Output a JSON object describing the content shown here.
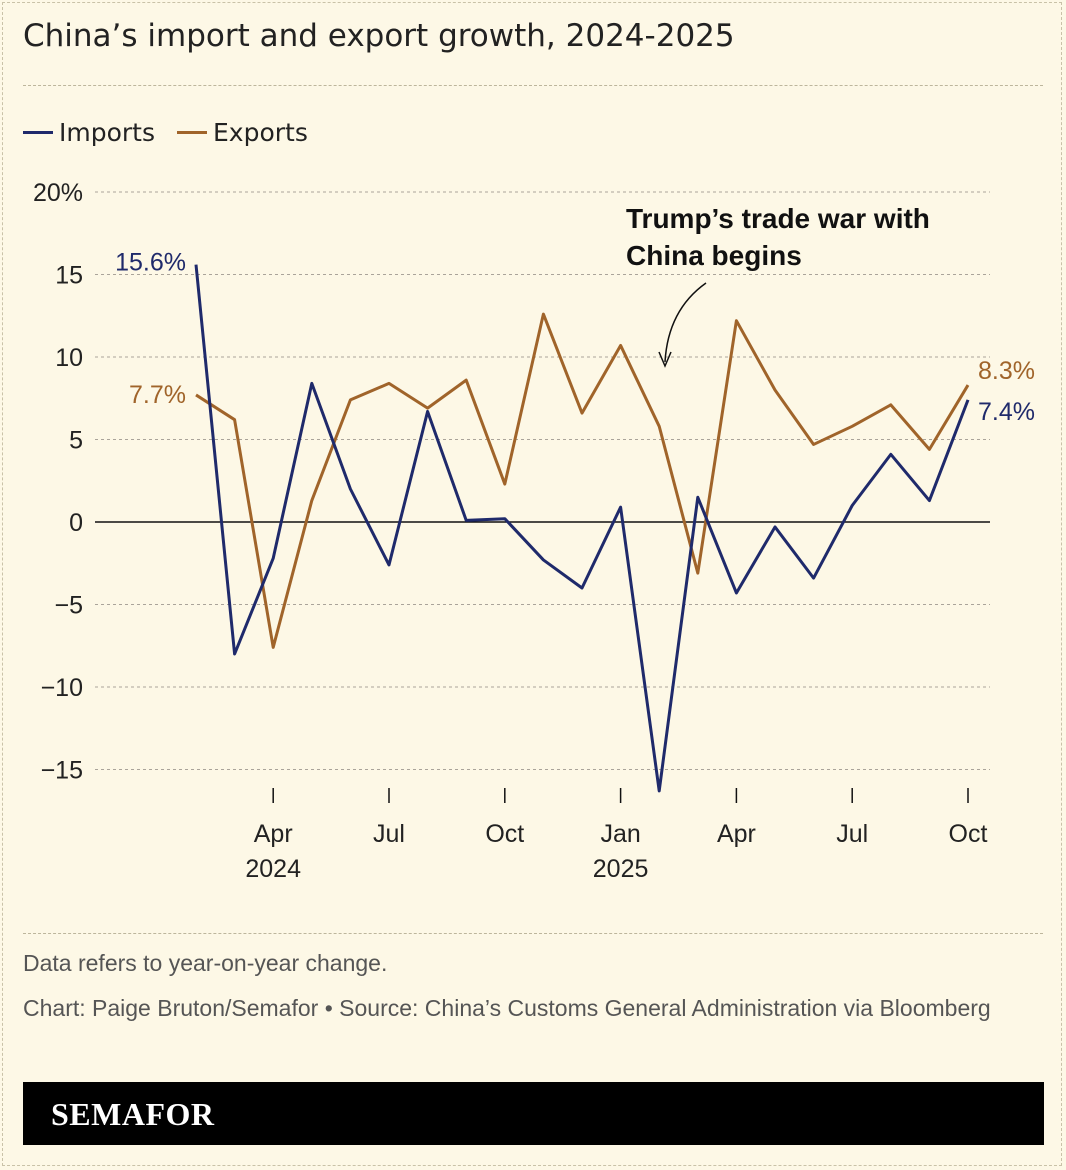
{
  "title": "China’s import and export growth, 2024-2025",
  "legend": [
    "Imports",
    "Exports"
  ],
  "notes": {
    "line1": "Data refers to year-on-year change.",
    "line2": "Chart: Paige Bruton/Semafor • Source: China’s Customs General Administration via Bloomberg"
  },
  "brand": "SEMAFOR",
  "chart_data": {
    "type": "line",
    "title": "China’s import and export growth, 2024-2025",
    "x": [
      "2024-02",
      "2024-03",
      "2024-04",
      "2024-05",
      "2024-06",
      "2024-07",
      "2024-08",
      "2024-09",
      "2024-10",
      "2024-11",
      "2024-12",
      "2025-01",
      "2025-02",
      "2025-03",
      "2025-04",
      "2025-05",
      "2025-06",
      "2025-07",
      "2025-08",
      "2025-09",
      "2025-10"
    ],
    "x_ticks": [
      {
        "x": "2024-04",
        "label": "Apr",
        "sub": "2024"
      },
      {
        "x": "2024-07",
        "label": "Jul",
        "sub": ""
      },
      {
        "x": "2024-10",
        "label": "Oct",
        "sub": ""
      },
      {
        "x": "2025-01",
        "label": "Jan",
        "sub": "2025"
      },
      {
        "x": "2025-04",
        "label": "Apr",
        "sub": ""
      },
      {
        "x": "2025-07",
        "label": "Jul",
        "sub": ""
      },
      {
        "x": "2025-10",
        "label": "Oct",
        "sub": ""
      }
    ],
    "y_ticks": [
      {
        "v": 20,
        "label": "20%"
      },
      {
        "v": 15,
        "label": "15"
      },
      {
        "v": 10,
        "label": "10"
      },
      {
        "v": 5,
        "label": "5"
      },
      {
        "v": 0,
        "label": "0"
      },
      {
        "v": -5,
        "label": "−5"
      },
      {
        "v": -10,
        "label": "−10"
      },
      {
        "v": -15,
        "label": "−15"
      }
    ],
    "ylim": [
      -15,
      20
    ],
    "grid": true,
    "legend_placement": "top-left",
    "series": [
      {
        "name": "Imports",
        "color": "#1f2a6b",
        "values": [
          15.6,
          -8.0,
          -2.2,
          8.4,
          2.0,
          -2.6,
          6.7,
          0.1,
          0.2,
          -2.3,
          -4.0,
          0.9,
          -16.3,
          1.5,
          -4.3,
          -0.3,
          -3.4,
          1.0,
          4.1,
          1.3,
          7.4
        ],
        "start_label": "15.6%",
        "end_label": "7.4%"
      },
      {
        "name": "Exports",
        "color": "#a0642a",
        "values": [
          7.7,
          6.2,
          -7.6,
          1.3,
          7.4,
          8.4,
          6.9,
          8.6,
          2.3,
          12.6,
          6.6,
          10.7,
          5.8,
          -3.1,
          12.2,
          8.0,
          4.7,
          5.8,
          7.1,
          4.4,
          8.3
        ],
        "start_label": "7.7%",
        "end_label": "8.3%"
      }
    ],
    "annotation": {
      "text_line1": "Trump’s trade war with",
      "text_line2": "China begins",
      "x": "2025-02"
    }
  }
}
